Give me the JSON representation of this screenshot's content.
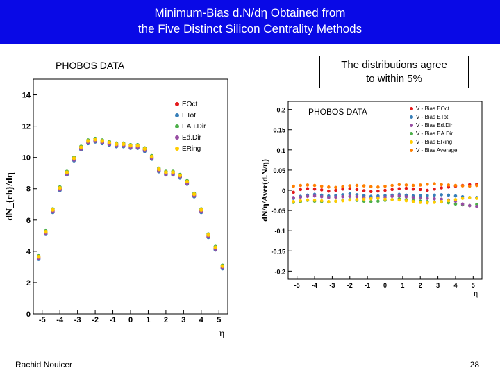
{
  "title_line1": "Minimum-Bias d.N/dη Obtained from",
  "title_line2": "the Five Distinct Silicon Centrality Methods",
  "footer_author": "Rachid  Nouicer",
  "footer_page": "28",
  "agree_box_line1": "The distributions agree",
  "agree_box_line2": "to within 5%",
  "phobos_label": "PHOBOS DATA",
  "colors": {
    "title_bg": "#0909e6",
    "axis": "#000000",
    "series": {
      "EOct": "#e41a1c",
      "ETot": "#377eb8",
      "EAu.Dir": "#4daf4a",
      "Ed.Dir": "#984ea3",
      "ERing": "#ffcc00",
      "Avg": "#ff7f00"
    }
  },
  "left_chart": {
    "type": "scatter",
    "xlabel": "η",
    "ylabel": "dN_{ch}/dη",
    "xlim": [
      -5.5,
      5.5
    ],
    "ylim": [
      0,
      15
    ],
    "xticks": [
      -5,
      -4,
      -3,
      -2,
      -1,
      0,
      1,
      2,
      3,
      4,
      5
    ],
    "yticks": [
      0,
      2,
      4,
      6,
      8,
      10,
      12,
      14
    ],
    "label_fontsize": 14,
    "tick_fontsize": 11,
    "marker_size": 2.2,
    "legend_items": [
      "EOct",
      "ETot",
      "EAu.Dir",
      "Ed.Dir",
      "ERing"
    ],
    "x": [
      -5.2,
      -4.8,
      -4.4,
      -4.0,
      -3.6,
      -3.2,
      -2.8,
      -2.4,
      -2.0,
      -1.6,
      -1.2,
      -0.8,
      -0.4,
      0.0,
      0.4,
      0.8,
      1.2,
      1.6,
      2.0,
      2.4,
      2.8,
      3.2,
      3.6,
      4.0,
      4.4,
      4.8,
      5.2
    ],
    "series": {
      "EOct": [
        3.6,
        5.2,
        6.6,
        8.0,
        9.0,
        9.9,
        10.6,
        11.0,
        11.1,
        11.0,
        10.9,
        10.8,
        10.8,
        10.7,
        10.7,
        10.5,
        10.0,
        9.2,
        9.0,
        9.0,
        8.8,
        8.4,
        7.6,
        6.6,
        5.0,
        4.2,
        3.0
      ],
      "ETot": [
        3.5,
        5.1,
        6.5,
        7.9,
        8.9,
        9.8,
        10.5,
        10.9,
        11.0,
        10.9,
        10.8,
        10.7,
        10.7,
        10.6,
        10.6,
        10.4,
        9.9,
        9.1,
        8.9,
        8.9,
        8.7,
        8.3,
        7.5,
        6.5,
        4.9,
        4.1,
        2.9
      ],
      "EAu.Dir": [
        3.7,
        5.3,
        6.7,
        8.1,
        9.1,
        10.0,
        10.7,
        11.1,
        11.2,
        11.1,
        11.0,
        10.9,
        10.9,
        10.8,
        10.8,
        10.6,
        10.1,
        9.3,
        9.1,
        9.1,
        8.9,
        8.5,
        7.7,
        6.7,
        5.1,
        4.3,
        3.1
      ],
      "Ed.Dir": [
        3.55,
        5.15,
        6.55,
        7.95,
        8.95,
        9.85,
        10.55,
        10.95,
        11.05,
        10.95,
        10.85,
        10.75,
        10.75,
        10.65,
        10.65,
        10.45,
        9.95,
        9.15,
        8.95,
        8.95,
        8.75,
        8.35,
        7.55,
        6.55,
        4.95,
        4.15,
        2.95
      ],
      "ERing": [
        3.65,
        5.25,
        6.65,
        8.05,
        9.05,
        9.95,
        10.65,
        11.05,
        11.15,
        11.05,
        10.95,
        10.85,
        10.85,
        10.75,
        10.75,
        10.55,
        10.05,
        9.25,
        9.05,
        9.05,
        8.85,
        8.45,
        7.65,
        6.65,
        5.05,
        4.25,
        3.05
      ]
    }
  },
  "right_chart": {
    "type": "scatter",
    "xlabel": "η",
    "ylabel": "dN/η/Aver(d.N/η)",
    "xlim": [
      -5.5,
      5.5
    ],
    "ylim": [
      -0.22,
      0.22
    ],
    "xticks": [
      -5,
      -4,
      -3,
      -2,
      -1,
      0,
      1,
      2,
      3,
      4,
      5
    ],
    "yticks": [
      -0.2,
      -0.15,
      -0.1,
      -0.05,
      0,
      0.05,
      0.1,
      0.15,
      0.2
    ],
    "label_fontsize": 12,
    "tick_fontsize": 9,
    "marker_size": 1.8,
    "legend_items": [
      "V - Bias EOct",
      "V - Bias ETot",
      "V - Bias Ed.Dir",
      "V - Bias EA.Dir",
      "V - Bias ERing",
      "V - Bias Average"
    ],
    "legend_colors": [
      "#e41a1c",
      "#377eb8",
      "#984ea3",
      "#4daf4a",
      "#ffcc00",
      "#ff7f00"
    ],
    "x": [
      -5.2,
      -4.8,
      -4.4,
      -4.0,
      -3.6,
      -3.2,
      -2.8,
      -2.4,
      -2.0,
      -1.6,
      -1.2,
      -0.8,
      -0.4,
      0.0,
      0.4,
      0.8,
      1.2,
      1.6,
      2.0,
      2.4,
      2.8,
      3.2,
      3.6,
      4.0,
      4.4,
      4.8,
      5.2
    ],
    "series": {
      "EOct": [
        -0.005,
        0.002,
        0.004,
        0.003,
        0.001,
        -0.002,
        0.0,
        0.003,
        0.004,
        0.002,
        -0.001,
        -0.003,
        -0.002,
        0.0,
        0.002,
        0.004,
        0.005,
        0.003,
        0.002,
        0.0,
        0.003,
        0.006,
        0.008,
        0.01,
        0.012,
        0.014,
        0.015
      ],
      "ETot": [
        -0.02,
        -0.015,
        -0.012,
        -0.01,
        -0.012,
        -0.014,
        -0.013,
        -0.011,
        -0.009,
        -0.011,
        -0.013,
        -0.015,
        -0.014,
        -0.013,
        -0.012,
        -0.01,
        -0.012,
        -0.014,
        -0.013,
        -0.013,
        -0.012,
        -0.011,
        -0.012,
        -0.014,
        -0.016,
        -0.018,
        -0.018
      ],
      "EAu.Dir": [
        -0.03,
        -0.028,
        -0.025,
        -0.027,
        -0.028,
        -0.029,
        -0.027,
        -0.025,
        -0.023,
        -0.025,
        -0.027,
        -0.028,
        -0.027,
        -0.025,
        -0.023,
        -0.021,
        -0.023,
        -0.025,
        -0.027,
        -0.028,
        -0.029,
        -0.029,
        -0.031,
        -0.034,
        -0.036,
        -0.038,
        -0.035
      ],
      "Ed.Dir": [
        -0.018,
        -0.017,
        -0.015,
        -0.014,
        -0.016,
        -0.018,
        -0.017,
        -0.016,
        -0.015,
        -0.016,
        -0.018,
        -0.019,
        -0.018,
        -0.017,
        -0.015,
        -0.014,
        -0.016,
        -0.018,
        -0.019,
        -0.02,
        -0.021,
        -0.022,
        -0.024,
        -0.027,
        -0.034,
        -0.038,
        -0.04
      ],
      "ERing": [
        -0.028,
        -0.026,
        -0.024,
        -0.025,
        -0.026,
        -0.028,
        -0.027,
        -0.026,
        -0.024,
        -0.023,
        -0.022,
        -0.021,
        -0.02,
        -0.022,
        -0.023,
        -0.024,
        -0.026,
        -0.028,
        -0.03,
        -0.031,
        -0.03,
        -0.028,
        -0.026,
        -0.023,
        -0.02,
        -0.018,
        -0.02
      ],
      "Avg": [
        0.01,
        0.012,
        0.013,
        0.012,
        0.01,
        0.008,
        0.007,
        0.009,
        0.011,
        0.012,
        0.011,
        0.009,
        0.008,
        0.01,
        0.012,
        0.014,
        0.013,
        0.012,
        0.013,
        0.015,
        0.016,
        0.014,
        0.013,
        0.012,
        0.011,
        0.01,
        0.012
      ]
    }
  }
}
